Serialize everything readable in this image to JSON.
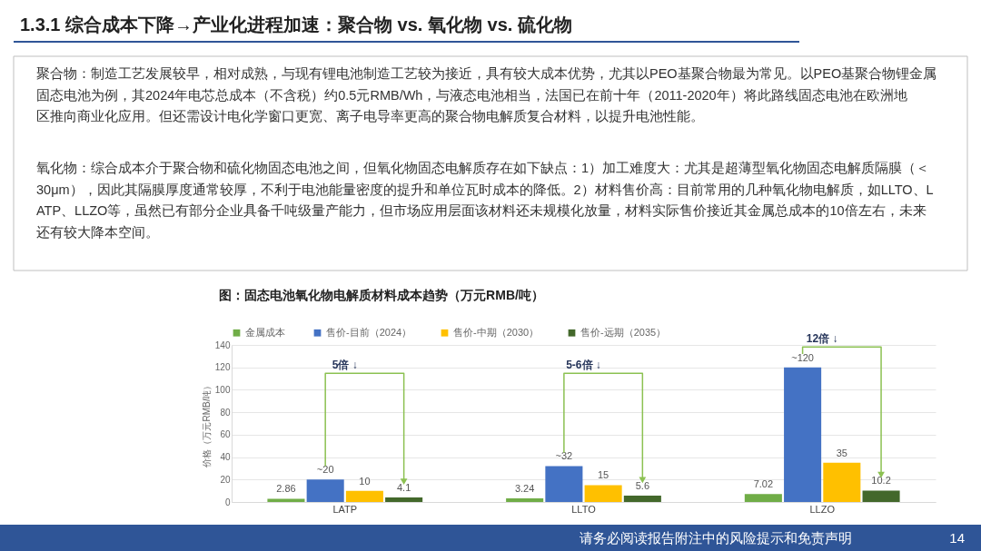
{
  "chart_data": {
    "type": "bar",
    "title": "1.3.1 综合成本下降→产业化进程加速：聚合物 vs. 氧化物 vs. 硫化物",
    "subtitle": "图：固态电池氧化物电解质材料成本趋势（万元RMB/吨）",
    "ylabel": "价格（万元RMB/吨）",
    "categories": [
      "LATP",
      "LLTO",
      "LLZO"
    ],
    "series": [
      {
        "name": "金属成本",
        "color": "#70ad47",
        "values": [
          2.86,
          3.24,
          7.02
        ],
        "value_labels": [
          "2.86",
          "3.24",
          "7.02"
        ]
      },
      {
        "name": "售价-目前（2024）",
        "color": "#4472c4",
        "values": [
          20,
          32,
          120
        ],
        "value_labels": [
          "~20",
          "~32",
          "~120"
        ]
      },
      {
        "name": "售价-中期（2030）",
        "color": "#ffc000",
        "values": [
          10,
          15,
          35
        ],
        "value_labels": [
          "10",
          "15",
          "35"
        ]
      },
      {
        "name": "售价-远期（2035）",
        "color": "#43682b",
        "values": [
          4.1,
          5.6,
          10.2
        ],
        "value_labels": [
          "4.1",
          "5.6",
          "10.2"
        ]
      }
    ],
    "ylim": [
      0,
      140
    ],
    "yticks": [
      0,
      20,
      40,
      60,
      80,
      100,
      120,
      140
    ],
    "grid": "y",
    "legend": "top",
    "annotations": [
      "聚合物：制造工艺发展较早，相对成熟，与现有锂电池制造工艺较为接近，具有较大成本优势，尤其以PEO基聚合物最为常见。以PEO基聚合物锂金属固态电池为例，其2024年电芯总成本（不含税）约0.5元RMB/Wh，与液态电池相当，法国已在前十年（2011-2020年）将此路线固态电池在欧洲地区推向商业化应用。但还需设计电化学窗口更宽、离子电导率更高的聚合物电解质复合材料，以提升电池性能。",
      "氧化物：综合成本介于聚合物和硫化物固态电池之间，但氧化物固态电解质存在如下缺点：1）加工难度大：尤其是超薄型氧化物固态电解质隔膜（＜30μm），因此其隔膜厚度通常较厚，不利于电池能量密度的提升和单位瓦时成本的降低。2）材料售价高：目前常用的几种氧化物电解质，如LLTO、LATP、LLZO等，虽然已有部分企业具备千吨级量产能力，但市场应用层面该材料还未规模化放量，材料实际售价接近其金属总成本的10倍左右，未来还有较大降本空间。",
      "5倍 ↓",
      "5-6倍 ↓",
      "12倍 ↓",
      "请务必阅读报告附注中的风险提示和免责声明",
      "14"
    ]
  }
}
